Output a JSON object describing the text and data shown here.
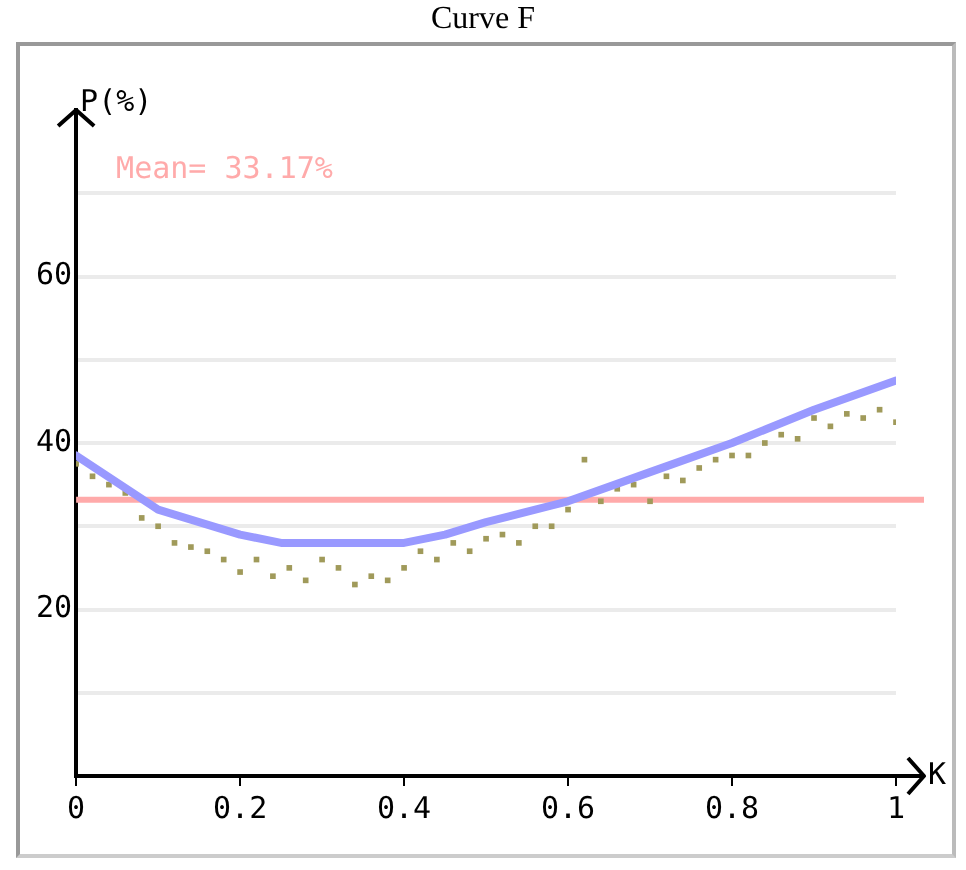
{
  "chart_data": {
    "type": "scatter",
    "title": "Curve F",
    "xlabel": "K",
    "ylabel": "P(%)",
    "xlim": [
      0,
      1
    ],
    "xticks": [
      0,
      0.2,
      0.4,
      0.6,
      0.8,
      1
    ],
    "ylim": [
      0,
      80
    ],
    "yticks": [
      {
        "value": 10,
        "label": null
      },
      20,
      {
        "value": 30,
        "label": null
      },
      40,
      {
        "value": 50,
        "label": null
      },
      60,
      {
        "value": 70,
        "label": null
      }
    ],
    "grid": "y",
    "legend": false,
    "ref_lines": [
      {
        "axis": "y",
        "value": 33.17,
        "label": "Mean= 33.17%",
        "color": "#ffaaaa"
      }
    ],
    "series": [
      {
        "color": "#a09a5a",
        "marker": "square",
        "x": [
          0,
          0.02,
          0.04,
          0.06,
          0.08,
          0.1,
          0.12,
          0.14,
          0.16,
          0.18,
          0.2,
          0.22,
          0.24,
          0.26,
          0.28,
          0.3,
          0.32,
          0.34,
          0.36,
          0.38,
          0.4,
          0.42,
          0.44,
          0.46,
          0.48,
          0.5,
          0.52,
          0.54,
          0.56,
          0.58,
          0.6,
          0.62,
          0.64,
          0.66,
          0.68,
          0.7,
          0.72,
          0.74,
          0.76,
          0.78,
          0.8,
          0.82,
          0.84,
          0.86,
          0.88,
          0.9,
          0.92,
          0.94,
          0.96,
          0.98,
          1
        ],
        "values": [
          37.5,
          36,
          35,
          34,
          31,
          30,
          28,
          27.5,
          27,
          26,
          24.5,
          26,
          24,
          25,
          23.5,
          26,
          25,
          23,
          24,
          23.5,
          25,
          27,
          26,
          28,
          27,
          28.5,
          29,
          28,
          30,
          30,
          32,
          38,
          33,
          34.5,
          35,
          33,
          36,
          35.5,
          37,
          38,
          38.5,
          38.5,
          40,
          41,
          40.5,
          43,
          42,
          43.5,
          43,
          44,
          42.5
        ]
      },
      {
        "type": "line",
        "marker": "none",
        "color": "#9999ff",
        "x": [
          0,
          0.1,
          0.2,
          0.25,
          0.3,
          0.4,
          0.45,
          0.5,
          0.6,
          0.7,
          0.8,
          0.9,
          1
        ],
        "values": [
          38.5,
          32,
          29,
          28,
          28,
          28,
          29,
          30.5,
          33,
          36.5,
          40,
          44,
          47.5
        ]
      }
    ]
  }
}
